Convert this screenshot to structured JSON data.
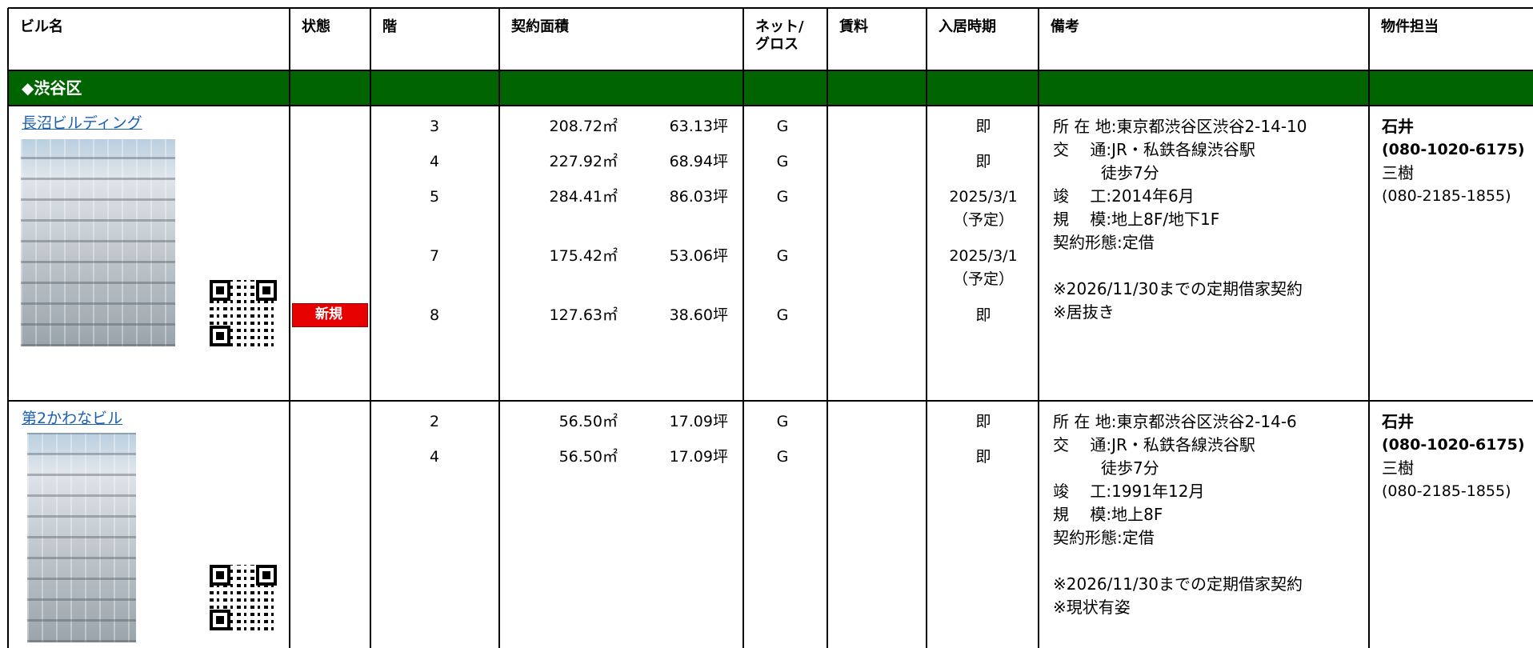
{
  "header": {
    "columns": [
      "ビル名",
      "状態",
      "階",
      "契約面積",
      [
        "ネット/",
        "グロス"
      ],
      "賃料",
      "入居時期",
      "備考",
      "物件担当"
    ]
  },
  "section": {
    "title": "◆渋谷区"
  },
  "buildings": [
    {
      "name": "長沼ビルディング",
      "status": "新規",
      "units": [
        {
          "floor": "3",
          "area_m2": "208.72㎡",
          "area_tsubo": "63.13坪",
          "net_gross": "G",
          "move_in": [
            "即"
          ]
        },
        {
          "floor": "4",
          "area_m2": "227.92㎡",
          "area_tsubo": "68.94坪",
          "net_gross": "G",
          "move_in": [
            "即"
          ]
        },
        {
          "floor": "5",
          "area_m2": "284.41㎡",
          "area_tsubo": "86.03坪",
          "net_gross": "G",
          "move_in": [
            "2025/3/1",
            "（予定）"
          ]
        },
        {
          "floor": "7",
          "area_m2": "175.42㎡",
          "area_tsubo": "53.06坪",
          "net_gross": "G",
          "move_in": [
            "2025/3/1",
            "（予定）"
          ]
        },
        {
          "floor": "8",
          "area_m2": "127.63㎡",
          "area_tsubo": "38.60坪",
          "net_gross": "G",
          "move_in": [
            "即"
          ]
        }
      ],
      "notes": [
        [
          "所 在 地:東京都渋谷区渋谷2-14-10",
          "交　 通:JR・私鉄各線渋谷駅",
          "　　　徒歩7分",
          "竣　 工:2014年6月",
          "規　 模:地上8F/地下1F",
          "契約形態:定借"
        ],
        [
          "※2026/11/30までの定期借家契約",
          "※居抜き"
        ]
      ],
      "contacts": [
        {
          "name": "石井",
          "phone": "(080-1020-6175)"
        },
        {
          "name": "三樹",
          "phone": "(080-2185-1855)"
        }
      ]
    },
    {
      "name": "第2かわなビル",
      "units": [
        {
          "floor": "2",
          "area_m2": "56.50㎡",
          "area_tsubo": "17.09坪",
          "net_gross": "G",
          "move_in": [
            "即"
          ]
        },
        {
          "floor": "4",
          "area_m2": "56.50㎡",
          "area_tsubo": "17.09坪",
          "net_gross": "G",
          "move_in": [
            "即"
          ]
        }
      ],
      "notes": [
        [
          "所 在 地:東京都渋谷区渋谷2-14-6",
          "交　 通:JR・私鉄各線渋谷駅",
          "　　　徒歩7分",
          "竣　 工:1991年12月",
          "規　 模:地上8F",
          "契約形態:定借"
        ],
        [
          "※2026/11/30までの定期借家契約",
          "※現状有姿"
        ]
      ],
      "contacts": [
        {
          "name": "石井",
          "phone": "(080-1020-6175)"
        },
        {
          "name": "三樹",
          "phone": "(080-2185-1855)"
        }
      ]
    }
  ]
}
